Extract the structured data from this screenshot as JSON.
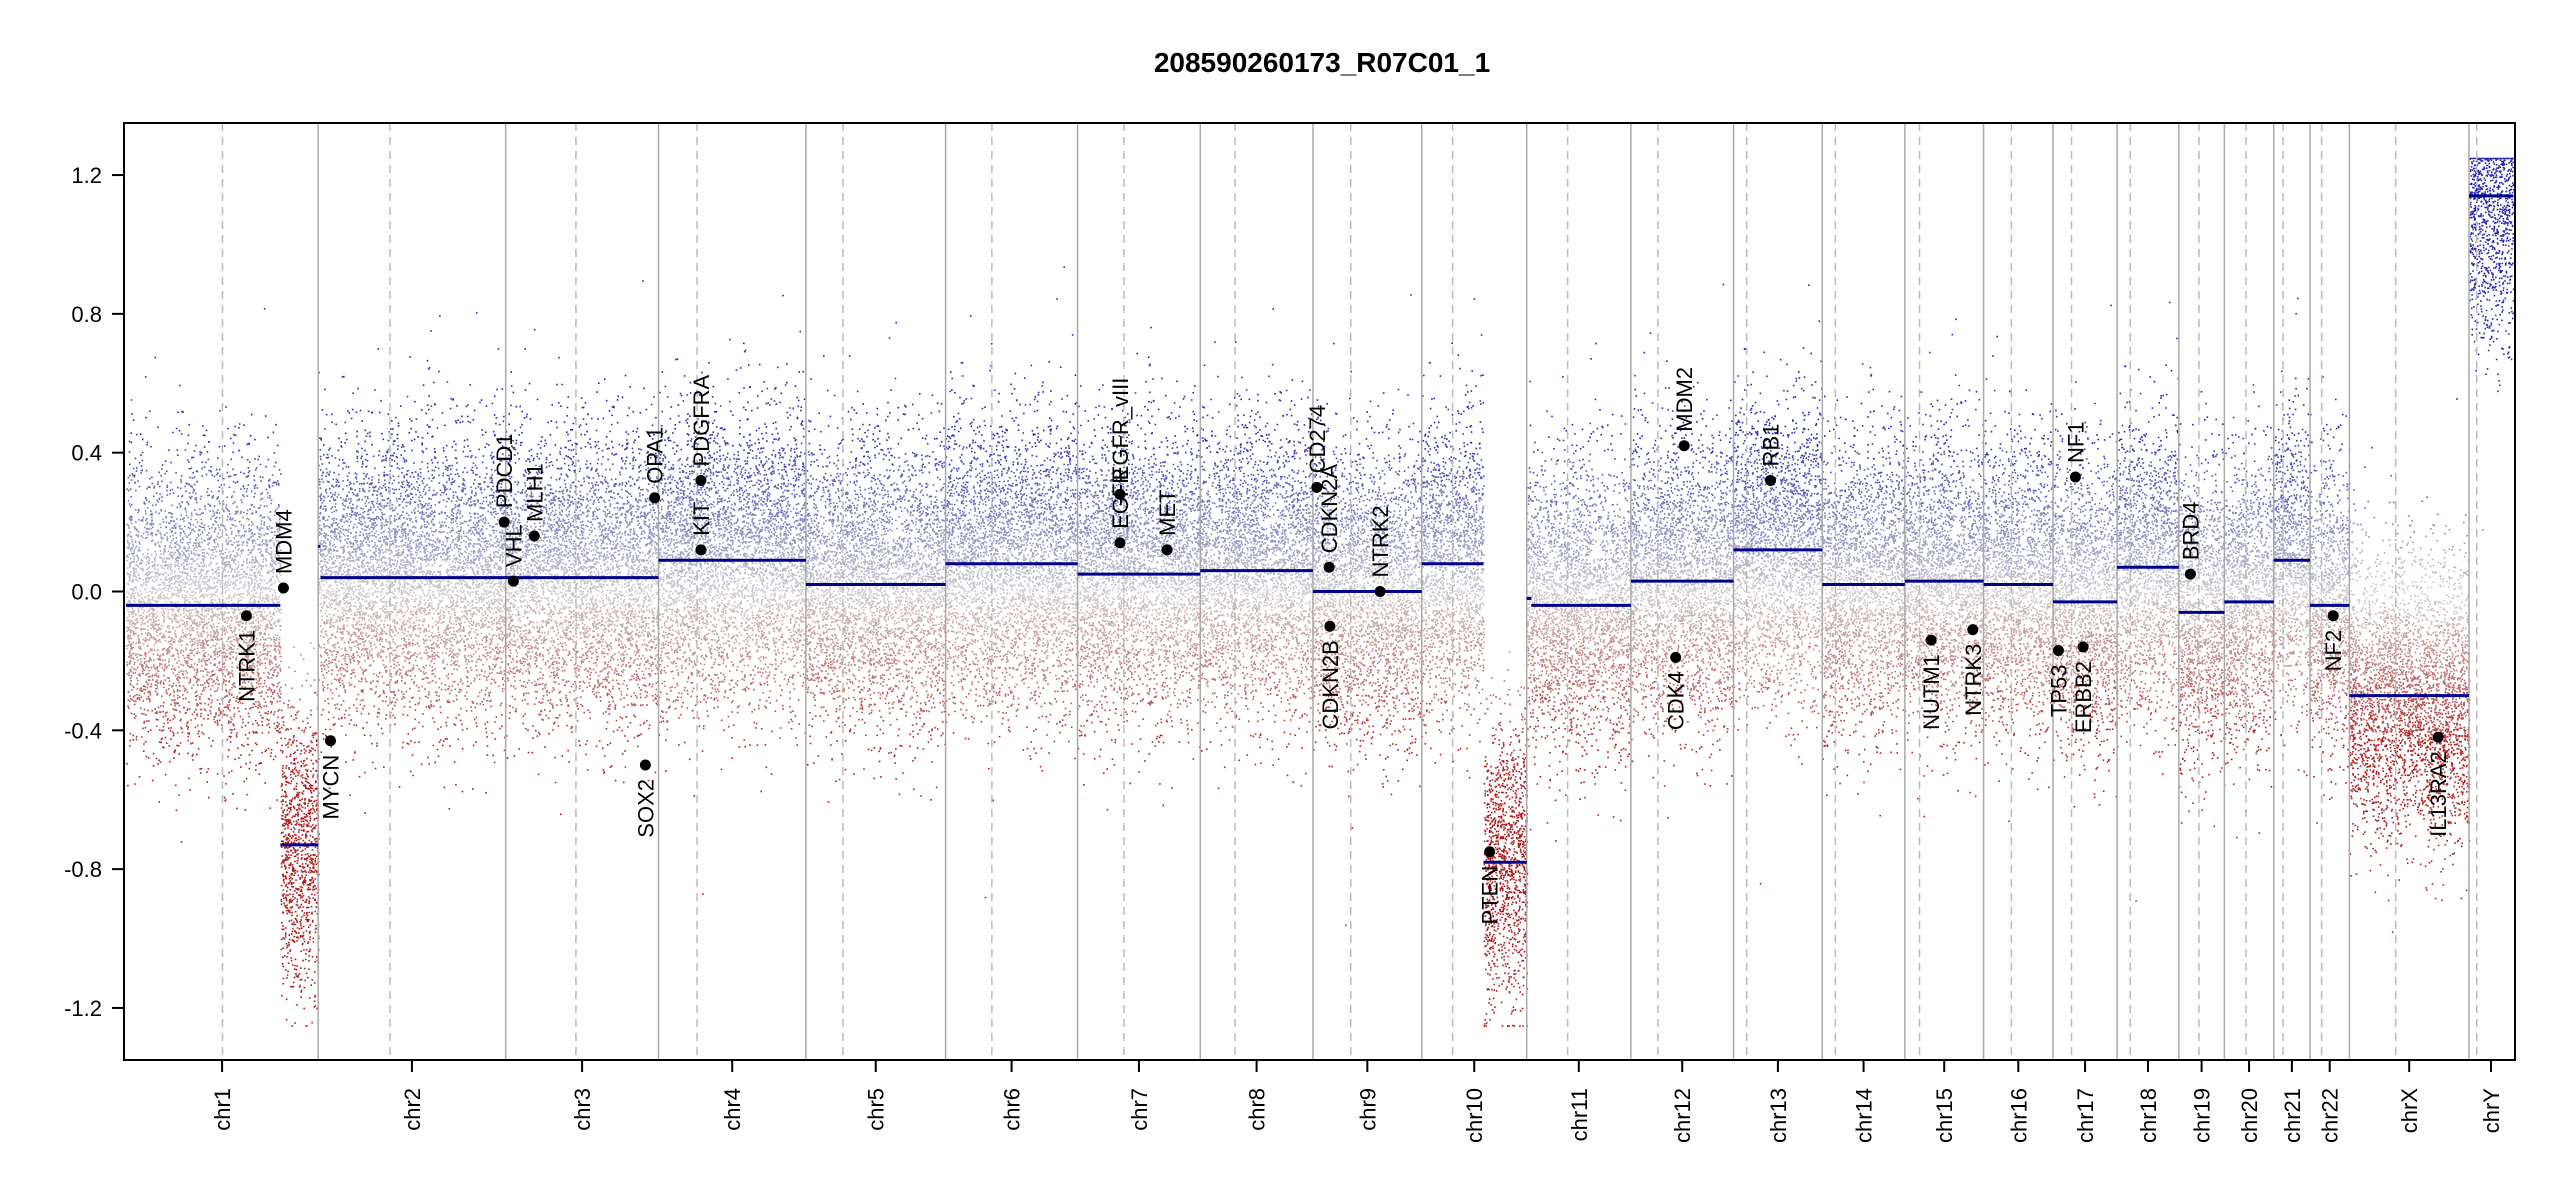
{
  "chart_data": {
    "type": "scatter",
    "title": "208590260173_R07C01_1",
    "xlabel": "",
    "ylabel": "",
    "ylim": [
      -1.35,
      1.35
    ],
    "yticks": [
      -1.2,
      -0.8,
      -0.4,
      0.0,
      0.4,
      0.8,
      1.2
    ],
    "ytick_labels": [
      "-1.2",
      "-0.8",
      "-0.4",
      "0.0",
      "0.4",
      "0.8",
      "1.2"
    ],
    "colors": {
      "gain": "#2b2bb0",
      "neutral": "#bdbdbd",
      "loss": "#b02020",
      "segment": "#00008b"
    },
    "chromosomes": [
      {
        "name": "chr1",
        "length": 249,
        "centromere": 125,
        "segments": [
          {
            "start": 0,
            "end": 200,
            "value": -0.04
          },
          {
            "start": 200,
            "end": 249,
            "value": -0.73
          }
        ]
      },
      {
        "name": "chr2",
        "length": 243,
        "centromere": 93,
        "segments": [
          {
            "start": 0,
            "end": 3,
            "value": 0.13
          },
          {
            "start": 3,
            "end": 243,
            "value": 0.04
          }
        ]
      },
      {
        "name": "chr3",
        "length": 198,
        "centromere": 91,
        "segments": [
          {
            "start": 0,
            "end": 198,
            "value": 0.04
          }
        ]
      },
      {
        "name": "chr4",
        "length": 191,
        "centromere": 50,
        "segments": [
          {
            "start": 0,
            "end": 191,
            "value": 0.09
          }
        ]
      },
      {
        "name": "chr5",
        "length": 181,
        "centromere": 48,
        "segments": [
          {
            "start": 0,
            "end": 181,
            "value": 0.02
          }
        ]
      },
      {
        "name": "chr6",
        "length": 171,
        "centromere": 60,
        "segments": [
          {
            "start": 0,
            "end": 171,
            "value": 0.08
          }
        ]
      },
      {
        "name": "chr7",
        "length": 159,
        "centromere": 60,
        "segments": [
          {
            "start": 0,
            "end": 159,
            "value": 0.05
          }
        ]
      },
      {
        "name": "chr8",
        "length": 146,
        "centromere": 45,
        "segments": [
          {
            "start": 0,
            "end": 146,
            "value": 0.06
          }
        ]
      },
      {
        "name": "chr9",
        "length": 141,
        "centromere": 49,
        "segments": [
          {
            "start": 0,
            "end": 141,
            "value": 0.0
          }
        ]
      },
      {
        "name": "chr10",
        "length": 136,
        "centromere": 40,
        "segments": [
          {
            "start": 0,
            "end": 80,
            "value": 0.08
          },
          {
            "start": 80,
            "end": 136,
            "value": -0.78
          }
        ]
      },
      {
        "name": "chr11",
        "length": 135,
        "centromere": 53,
        "segments": [
          {
            "start": 0,
            "end": 6,
            "value": -0.02
          },
          {
            "start": 6,
            "end": 135,
            "value": -0.04
          }
        ]
      },
      {
        "name": "chr12",
        "length": 133,
        "centromere": 35,
        "segments": [
          {
            "start": 0,
            "end": 133,
            "value": 0.03
          }
        ]
      },
      {
        "name": "chr13",
        "length": 115,
        "centromere": 17,
        "segments": [
          {
            "start": 0,
            "end": 115,
            "value": 0.12
          }
        ]
      },
      {
        "name": "chr14",
        "length": 107,
        "centromere": 17,
        "segments": [
          {
            "start": 0,
            "end": 107,
            "value": 0.02
          }
        ]
      },
      {
        "name": "chr15",
        "length": 102,
        "centromere": 19,
        "segments": [
          {
            "start": 0,
            "end": 102,
            "value": 0.03
          }
        ]
      },
      {
        "name": "chr16",
        "length": 90,
        "centromere": 36,
        "segments": [
          {
            "start": 0,
            "end": 90,
            "value": 0.02
          }
        ]
      },
      {
        "name": "chr17",
        "length": 83,
        "centromere": 24,
        "segments": [
          {
            "start": 0,
            "end": 83,
            "value": -0.03
          }
        ]
      },
      {
        "name": "chr18",
        "length": 80,
        "centromere": 17,
        "segments": [
          {
            "start": 0,
            "end": 80,
            "value": 0.07
          }
        ]
      },
      {
        "name": "chr19",
        "length": 59,
        "centromere": 26,
        "segments": [
          {
            "start": 0,
            "end": 59,
            "value": -0.06
          }
        ]
      },
      {
        "name": "chr20",
        "length": 64,
        "centromere": 28,
        "segments": [
          {
            "start": 0,
            "end": 64,
            "value": -0.03
          }
        ]
      },
      {
        "name": "chr21",
        "length": 47,
        "centromere": 12,
        "segments": [
          {
            "start": 0,
            "end": 47,
            "value": 0.09
          }
        ]
      },
      {
        "name": "chr22",
        "length": 51,
        "centromere": 15,
        "segments": [
          {
            "start": 0,
            "end": 51,
            "value": -0.04
          }
        ]
      },
      {
        "name": "chrX",
        "length": 155,
        "centromere": 60,
        "segments": [
          {
            "start": 0,
            "end": 155,
            "value": -0.3
          }
        ]
      },
      {
        "name": "chrY",
        "length": 57,
        "centromere": 10,
        "segments": [
          {
            "start": 0,
            "end": 57,
            "value": 1.14
          }
        ]
      }
    ],
    "genes": [
      {
        "name": "NTRK1",
        "chr": "chr1",
        "pos": 156,
        "value": -0.07,
        "label_side": "below"
      },
      {
        "name": "MDM4",
        "chr": "chr1",
        "pos": 204,
        "value": 0.01,
        "label_side": "above"
      },
      {
        "name": "MYCN",
        "chr": "chr2",
        "pos": 16,
        "value": -0.43,
        "label_side": "below"
      },
      {
        "name": "VHL",
        "chr": "chr3",
        "pos": 10,
        "value": 0.03,
        "label_side": "above"
      },
      {
        "name": "PDCD1",
        "chr": "chr2",
        "pos": 241,
        "value": 0.2,
        "label_side": "above"
      },
      {
        "name": "MLH1",
        "chr": "chr3",
        "pos": 37,
        "value": 0.16,
        "label_side": "above"
      },
      {
        "name": "SOX2",
        "chr": "chr3",
        "pos": 181,
        "value": -0.5,
        "label_side": "below"
      },
      {
        "name": "OPA1",
        "chr": "chr3",
        "pos": 193,
        "value": 0.27,
        "label_side": "above"
      },
      {
        "name": "KIT",
        "chr": "chr4",
        "pos": 55,
        "value": 0.12,
        "label_side": "above"
      },
      {
        "name": "PDGFRA",
        "chr": "chr4",
        "pos": 55,
        "value": 0.32,
        "label_side": "above"
      },
      {
        "name": "EGFR",
        "chr": "chr7",
        "pos": 55,
        "value": 0.14,
        "label_side": "above"
      },
      {
        "name": "EGFR_vIII",
        "chr": "chr7",
        "pos": 55,
        "value": 0.28,
        "label_side": "above"
      },
      {
        "name": "MET",
        "chr": "chr7",
        "pos": 116,
        "value": 0.12,
        "label_side": "above"
      },
      {
        "name": "CD274",
        "chr": "chr9",
        "pos": 5,
        "value": 0.3,
        "label_side": "above"
      },
      {
        "name": "CDKN2A",
        "chr": "chr9",
        "pos": 21,
        "value": 0.07,
        "label_side": "above"
      },
      {
        "name": "CDKN2B",
        "chr": "chr9",
        "pos": 22,
        "value": -0.1,
        "label_side": "below"
      },
      {
        "name": "NTRK2",
        "chr": "chr9",
        "pos": 87,
        "value": 0.0,
        "label_side": "above"
      },
      {
        "name": "PTEN",
        "chr": "chr10",
        "pos": 88,
        "value": -0.75,
        "label_side": "below"
      },
      {
        "name": "CDK4",
        "chr": "chr12",
        "pos": 58,
        "value": -0.19,
        "label_side": "below"
      },
      {
        "name": "MDM2",
        "chr": "chr12",
        "pos": 69,
        "value": 0.42,
        "label_side": "above"
      },
      {
        "name": "RB1",
        "chr": "chr13",
        "pos": 48,
        "value": 0.32,
        "label_side": "above"
      },
      {
        "name": "NUTM1",
        "chr": "chr15",
        "pos": 34,
        "value": -0.14,
        "label_side": "below"
      },
      {
        "name": "NTRK3",
        "chr": "chr15",
        "pos": 88,
        "value": -0.11,
        "label_side": "below"
      },
      {
        "name": "TP53",
        "chr": "chr17",
        "pos": 7,
        "value": -0.17,
        "label_side": "below"
      },
      {
        "name": "NF1",
        "chr": "chr17",
        "pos": 29,
        "value": 0.33,
        "label_side": "above"
      },
      {
        "name": "ERBB2",
        "chr": "chr17",
        "pos": 39,
        "value": -0.16,
        "label_side": "below"
      },
      {
        "name": "BRD4",
        "chr": "chr19",
        "pos": 15,
        "value": 0.05,
        "label_side": "above"
      },
      {
        "name": "NF2",
        "chr": "chr22",
        "pos": 30,
        "value": -0.07,
        "label_side": "below"
      },
      {
        "name": "IL13RA2",
        "chr": "chrX",
        "pos": 115,
        "value": -0.42,
        "label_side": "below"
      }
    ]
  }
}
